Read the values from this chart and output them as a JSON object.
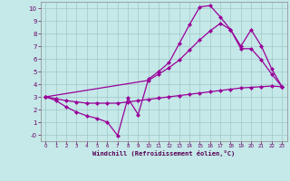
{
  "xlabel": "Windchill (Refroidissement éolien,°C)",
  "bg_color": "#c5e8e8",
  "line_color": "#990099",
  "grid_color": "#a0c8c8",
  "xlim": [
    -0.5,
    23.5
  ],
  "ylim": [
    -0.5,
    10.5
  ],
  "xticks": [
    0,
    1,
    2,
    3,
    4,
    5,
    6,
    7,
    8,
    9,
    10,
    11,
    12,
    13,
    14,
    15,
    16,
    17,
    18,
    19,
    20,
    21,
    22,
    23
  ],
  "yticks": [
    0,
    1,
    2,
    3,
    4,
    5,
    6,
    7,
    8,
    9,
    10
  ],
  "line1_x": [
    0,
    1,
    2,
    3,
    4,
    5,
    6,
    7,
    8,
    9,
    10,
    11,
    12,
    13,
    14,
    15,
    16,
    17,
    18,
    19,
    20,
    21,
    22,
    23
  ],
  "line1_y": [
    3.0,
    2.7,
    2.2,
    1.8,
    1.5,
    1.3,
    1.0,
    -0.05,
    2.9,
    1.6,
    4.4,
    5.0,
    5.7,
    7.2,
    8.7,
    10.1,
    10.2,
    9.3,
    8.3,
    6.8,
    6.8,
    5.9,
    4.8,
    3.8
  ],
  "line2_x": [
    0,
    1,
    2,
    3,
    4,
    5,
    6,
    7,
    8,
    9,
    10,
    11,
    12,
    13,
    14,
    15,
    16,
    17,
    18,
    19,
    20,
    21,
    22,
    23
  ],
  "line2_y": [
    3.0,
    2.85,
    2.7,
    2.6,
    2.5,
    2.5,
    2.5,
    2.5,
    2.6,
    2.7,
    2.8,
    2.9,
    3.0,
    3.1,
    3.2,
    3.3,
    3.4,
    3.5,
    3.6,
    3.7,
    3.75,
    3.8,
    3.85,
    3.8
  ],
  "line3_x": [
    0,
    10,
    11,
    12,
    13,
    14,
    15,
    16,
    17,
    18,
    19,
    20,
    21,
    22,
    23
  ],
  "line3_y": [
    3.0,
    4.3,
    4.8,
    5.3,
    5.9,
    6.7,
    7.5,
    8.2,
    8.8,
    8.3,
    7.0,
    8.3,
    7.0,
    5.2,
    3.8
  ]
}
